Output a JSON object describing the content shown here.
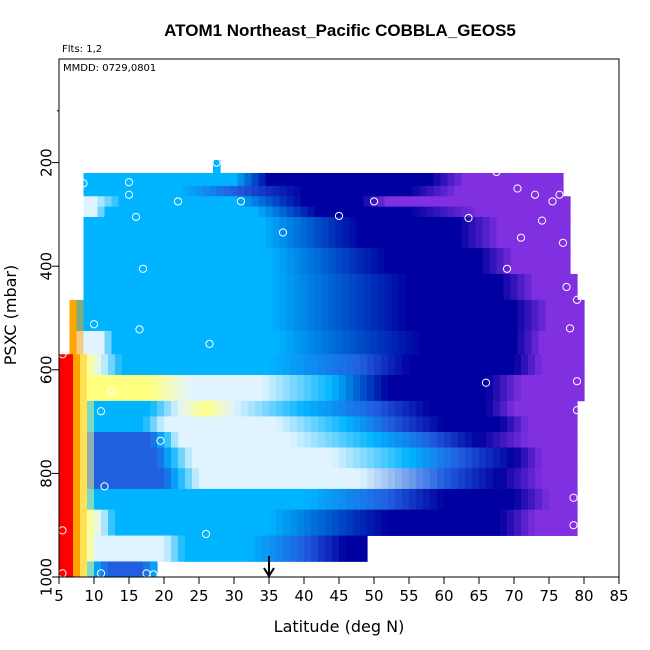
{
  "chart_data": {
    "type": "heatmap",
    "title": "ATOM1 Northeast_Pacific COBBLA_GEOS5",
    "annotations": {
      "flights": "Flts: 1,2",
      "dates": "MMDD: 0729,0801",
      "arrow_latitude": 35
    },
    "xlabel": "Latitude (deg N)",
    "ylabel": "PSXC (mbar)",
    "xlim": [
      5,
      85
    ],
    "ylim": [
      1000,
      0
    ],
    "xticks": [
      5,
      10,
      15,
      20,
      25,
      30,
      35,
      40,
      45,
      50,
      55,
      60,
      65,
      70,
      75,
      80,
      85
    ],
    "yticks": [
      200,
      400,
      600,
      800,
      1000
    ],
    "colors": {
      "red": "#ff0000",
      "orange": "#ffa500",
      "yellow": "#ffff80",
      "light": "#e0f4ff",
      "sky": "#00b4ff",
      "blue": "#2060e0",
      "navy": "#0000a0",
      "purple": "#8030e0",
      "point": "#ffffff"
    },
    "rows": [
      {
        "p": [
          220,
          245
        ],
        "lat": [
          8.5,
          77
        ],
        "anchors": [
          [
            8.5,
            "sky"
          ],
          [
            10,
            "sky"
          ],
          [
            30,
            "sky"
          ],
          [
            35,
            "navy"
          ],
          [
            58,
            "navy"
          ],
          [
            63,
            "purple"
          ],
          [
            77,
            "purple"
          ]
        ]
      },
      {
        "p": [
          245,
          265
        ],
        "lat": [
          8.5,
          77
        ],
        "anchors": [
          [
            8.5,
            "sky"
          ],
          [
            22,
            "sky"
          ],
          [
            30,
            "blue"
          ],
          [
            40,
            "navy"
          ],
          [
            55,
            "navy"
          ],
          [
            62,
            "purple"
          ],
          [
            77,
            "purple"
          ]
        ]
      },
      {
        "p": [
          265,
          285
        ],
        "lat": [
          8.5,
          78
        ],
        "anchors": [
          [
            8.5,
            "light"
          ],
          [
            10,
            "light"
          ],
          [
            14,
            "sky"
          ],
          [
            30,
            "sky"
          ],
          [
            40,
            "navy"
          ],
          [
            48,
            "navy"
          ],
          [
            52,
            "purple"
          ],
          [
            78,
            "purple"
          ]
        ]
      },
      {
        "p": [
          285,
          305
        ],
        "lat": [
          8.5,
          78
        ],
        "anchors": [
          [
            8.5,
            "light"
          ],
          [
            10,
            "light"
          ],
          [
            12,
            "sky"
          ],
          [
            33,
            "sky"
          ],
          [
            42,
            "navy"
          ],
          [
            55,
            "navy"
          ],
          [
            65,
            "purple"
          ],
          [
            78,
            "purple"
          ]
        ]
      },
      {
        "p": [
          305,
          365
        ],
        "lat": [
          8.5,
          78
        ],
        "anchors": [
          [
            8.5,
            "sky"
          ],
          [
            34,
            "sky"
          ],
          [
            48,
            "navy"
          ],
          [
            62,
            "navy"
          ],
          [
            68,
            "purple"
          ],
          [
            78,
            "purple"
          ]
        ]
      },
      {
        "p": [
          365,
          415
        ],
        "lat": [
          8.5,
          78
        ],
        "anchors": [
          [
            8.5,
            "sky"
          ],
          [
            35,
            "sky"
          ],
          [
            52,
            "navy"
          ],
          [
            65,
            "navy"
          ],
          [
            70,
            "purple"
          ],
          [
            78,
            "purple"
          ]
        ]
      },
      {
        "p": [
          415,
          465
        ],
        "lat": [
          8.5,
          79
        ],
        "anchors": [
          [
            8.5,
            "sky"
          ],
          [
            35,
            "sky"
          ],
          [
            55,
            "navy"
          ],
          [
            68,
            "navy"
          ],
          [
            73,
            "purple"
          ],
          [
            79,
            "purple"
          ]
        ]
      },
      {
        "p": [
          465,
          525
        ],
        "lat": [
          6.5,
          80
        ],
        "anchors": [
          [
            6.5,
            "orange"
          ],
          [
            7.5,
            "orange"
          ],
          [
            8.5,
            "sky"
          ],
          [
            35,
            "sky"
          ],
          [
            55,
            "navy"
          ],
          [
            70,
            "navy"
          ],
          [
            75,
            "purple"
          ],
          [
            80,
            "purple"
          ]
        ]
      },
      {
        "p": [
          525,
          570
        ],
        "lat": [
          6.5,
          80
        ],
        "anchors": [
          [
            6.5,
            "orange"
          ],
          [
            7.5,
            "orange"
          ],
          [
            8.5,
            "light"
          ],
          [
            11,
            "light"
          ],
          [
            13,
            "sky"
          ],
          [
            36,
            "sky"
          ],
          [
            57,
            "navy"
          ],
          [
            70,
            "navy"
          ],
          [
            74,
            "purple"
          ],
          [
            80,
            "purple"
          ]
        ]
      },
      {
        "p": [
          570,
          610
        ],
        "lat": [
          5,
          80
        ],
        "anchors": [
          [
            5,
            "red"
          ],
          [
            6.5,
            "red"
          ],
          [
            7.5,
            "orange"
          ],
          [
            9,
            "yellow"
          ],
          [
            11,
            "light"
          ],
          [
            14,
            "sky"
          ],
          [
            35,
            "sky"
          ],
          [
            48,
            "blue"
          ],
          [
            55,
            "navy"
          ],
          [
            70,
            "navy"
          ],
          [
            74,
            "purple"
          ],
          [
            80,
            "purple"
          ]
        ]
      },
      {
        "p": [
          610,
          660
        ],
        "lat": [
          5,
          80
        ],
        "anchors": [
          [
            5,
            "red"
          ],
          [
            6.5,
            "red"
          ],
          [
            7.5,
            "orange"
          ],
          [
            9,
            "yellow"
          ],
          [
            18,
            "yellow"
          ],
          [
            24,
            "light"
          ],
          [
            34,
            "light"
          ],
          [
            44,
            "sky"
          ],
          [
            52,
            "navy"
          ],
          [
            66,
            "navy"
          ],
          [
            71,
            "purple"
          ],
          [
            80,
            "purple"
          ]
        ]
      },
      {
        "p": [
          660,
          690
        ],
        "lat": [
          5,
          79
        ],
        "anchors": [
          [
            5,
            "red"
          ],
          [
            6.5,
            "red"
          ],
          [
            7.5,
            "orange"
          ],
          [
            9,
            "yellow"
          ],
          [
            10,
            "sky"
          ],
          [
            18,
            "sky"
          ],
          [
            22,
            "light"
          ],
          [
            26,
            "yellow"
          ],
          [
            30,
            "light"
          ],
          [
            40,
            "sky"
          ],
          [
            50,
            "blue"
          ],
          [
            58,
            "navy"
          ],
          [
            66,
            "navy"
          ],
          [
            70,
            "purple"
          ],
          [
            79,
            "purple"
          ]
        ]
      },
      {
        "p": [
          690,
          720
        ],
        "lat": [
          5,
          79
        ],
        "anchors": [
          [
            5,
            "red"
          ],
          [
            6.5,
            "red"
          ],
          [
            7.5,
            "orange"
          ],
          [
            9,
            "yellow"
          ],
          [
            10,
            "sky"
          ],
          [
            17,
            "sky"
          ],
          [
            20,
            "light"
          ],
          [
            36,
            "light"
          ],
          [
            46,
            "sky"
          ],
          [
            52,
            "blue"
          ],
          [
            60,
            "navy"
          ],
          [
            68,
            "navy"
          ],
          [
            72,
            "purple"
          ],
          [
            79,
            "purple"
          ]
        ]
      },
      {
        "p": [
          720,
          750
        ],
        "lat": [
          5,
          79
        ],
        "anchors": [
          [
            5,
            "red"
          ],
          [
            6.5,
            "red"
          ],
          [
            7.5,
            "orange"
          ],
          [
            9,
            "yellow"
          ],
          [
            10,
            "blue"
          ],
          [
            18,
            "blue"
          ],
          [
            20,
            "sky"
          ],
          [
            22,
            "light"
          ],
          [
            38,
            "light"
          ],
          [
            50,
            "sky"
          ],
          [
            58,
            "blue"
          ],
          [
            65,
            "navy"
          ],
          [
            72,
            "purple"
          ],
          [
            79,
            "purple"
          ]
        ]
      },
      {
        "p": [
          750,
          790
        ],
        "lat": [
          5,
          79
        ],
        "anchors": [
          [
            5,
            "red"
          ],
          [
            6.5,
            "red"
          ],
          [
            7.5,
            "orange"
          ],
          [
            9,
            "yellow"
          ],
          [
            10,
            "blue"
          ],
          [
            19,
            "blue"
          ],
          [
            21,
            "sky"
          ],
          [
            24,
            "light"
          ],
          [
            44,
            "light"
          ],
          [
            55,
            "sky"
          ],
          [
            62,
            "blue"
          ],
          [
            70,
            "navy"
          ],
          [
            74,
            "purple"
          ],
          [
            79,
            "purple"
          ]
        ]
      },
      {
        "p": [
          790,
          830
        ],
        "lat": [
          5,
          79
        ],
        "anchors": [
          [
            5,
            "red"
          ],
          [
            6.5,
            "red"
          ],
          [
            7.5,
            "orange"
          ],
          [
            9,
            "yellow"
          ],
          [
            10,
            "blue"
          ],
          [
            20,
            "blue"
          ],
          [
            22,
            "sky"
          ],
          [
            25,
            "light"
          ],
          [
            48,
            "light"
          ],
          [
            60,
            "blue"
          ],
          [
            68,
            "navy"
          ],
          [
            74,
            "purple"
          ],
          [
            79,
            "purple"
          ]
        ]
      },
      {
        "p": [
          830,
          870
        ],
        "lat": [
          5,
          79
        ],
        "anchors": [
          [
            5,
            "red"
          ],
          [
            6.5,
            "red"
          ],
          [
            7.5,
            "orange"
          ],
          [
            9,
            "yellow"
          ],
          [
            10,
            "sky"
          ],
          [
            25,
            "sky"
          ],
          [
            40,
            "sky"
          ],
          [
            52,
            "blue"
          ],
          [
            60,
            "navy"
          ],
          [
            70,
            "navy"
          ],
          [
            75,
            "purple"
          ],
          [
            79,
            "purple"
          ]
        ]
      },
      {
        "p": [
          870,
          920
        ],
        "lat": [
          5,
          79
        ],
        "anchors": [
          [
            5,
            "red"
          ],
          [
            6.5,
            "red"
          ],
          [
            7.5,
            "orange"
          ],
          [
            9,
            "yellow"
          ],
          [
            11,
            "light"
          ],
          [
            13,
            "sky"
          ],
          [
            35,
            "sky"
          ],
          [
            52,
            "navy"
          ],
          [
            68,
            "navy"
          ],
          [
            73,
            "purple"
          ],
          [
            79,
            "purple"
          ]
        ]
      },
      {
        "p": [
          920,
          970
        ],
        "lat": [
          5,
          49
        ],
        "anchors": [
          [
            5,
            "red"
          ],
          [
            6.5,
            "red"
          ],
          [
            7.5,
            "orange"
          ],
          [
            9,
            "yellow"
          ],
          [
            10.5,
            "light"
          ],
          [
            20,
            "light"
          ],
          [
            23,
            "sky"
          ],
          [
            32,
            "sky"
          ],
          [
            40,
            "blue"
          ],
          [
            46,
            "navy"
          ],
          [
            49,
            "navy"
          ]
        ]
      },
      {
        "p": [
          970,
          1000
        ],
        "lat": [
          5,
          19
        ],
        "anchors": [
          [
            5,
            "red"
          ],
          [
            6.5,
            "red"
          ],
          [
            7.5,
            "orange"
          ],
          [
            9,
            "yellow"
          ],
          [
            10,
            "sky"
          ],
          [
            12,
            "blue"
          ],
          [
            17,
            "blue"
          ],
          [
            19,
            "sky"
          ]
        ]
      },
      {
        "p": [
          195,
          220
        ],
        "lat": [
          27,
          28
        ],
        "anchors": [
          [
            27,
            "sky"
          ],
          [
            28,
            "sky"
          ]
        ]
      }
    ],
    "points": [
      [
        8.5,
        240
      ],
      [
        15,
        238
      ],
      [
        15,
        262
      ],
      [
        22,
        275
      ],
      [
        16,
        305
      ],
      [
        31,
        275
      ],
      [
        27.5,
        200
      ],
      [
        37,
        335
      ],
      [
        45,
        303
      ],
      [
        50,
        275
      ],
      [
        17,
        405
      ],
      [
        10,
        512
      ],
      [
        16.5,
        522
      ],
      [
        26.5,
        550
      ],
      [
        5.5,
        570
      ],
      [
        67.5,
        218
      ],
      [
        70.5,
        250
      ],
      [
        73,
        262
      ],
      [
        75.5,
        275
      ],
      [
        76.5,
        262
      ],
      [
        74,
        312
      ],
      [
        71,
        345
      ],
      [
        77,
        355
      ],
      [
        63.5,
        307
      ],
      [
        69,
        405
      ],
      [
        77.5,
        440
      ],
      [
        79,
        465
      ],
      [
        78,
        520
      ],
      [
        66,
        625
      ],
      [
        79,
        622
      ],
      [
        79,
        678
      ],
      [
        11,
        680
      ],
      [
        12.5,
        640
      ],
      [
        19.5,
        737
      ],
      [
        11.5,
        825
      ],
      [
        78.5,
        847
      ],
      [
        78.5,
        900
      ],
      [
        26,
        917
      ],
      [
        5.5,
        910
      ],
      [
        5.5,
        993
      ],
      [
        11,
        993
      ],
      [
        17.5,
        993
      ],
      [
        18.5,
        995
      ]
    ]
  }
}
